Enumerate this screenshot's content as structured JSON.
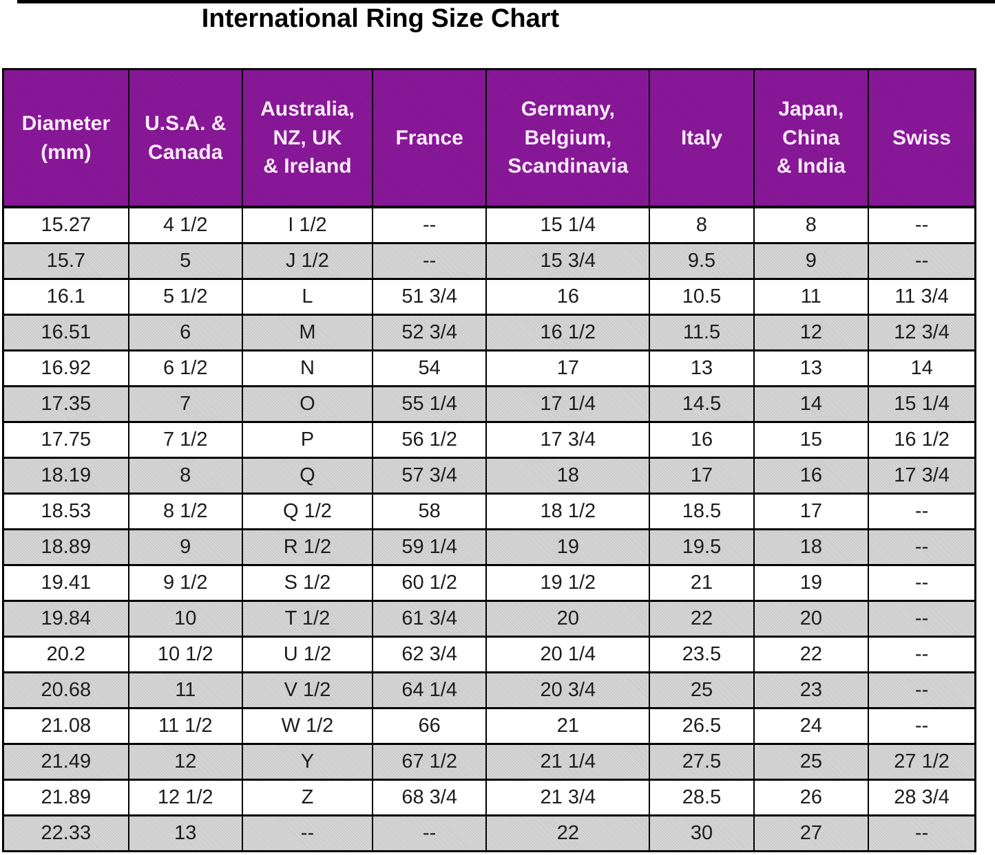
{
  "title": "International Ring Size Chart",
  "colors": {
    "header_bg": "#8B189B",
    "header_text": "#FBEBFC",
    "row_bg": "#FFFFFF",
    "row_alt_bg": "#CBCBCB",
    "border": "#000000",
    "title_color": "#000000",
    "cell_text": "#1C1C1C"
  },
  "chart_data": {
    "type": "table",
    "title": "International Ring Size Chart",
    "columns": [
      "Diameter\n(mm)",
      "U.S.A. &\nCanada",
      "Australia,\nNZ, UK\n& Ireland",
      "France",
      "Germany,\nBelgium,\nScandinavia",
      "Italy",
      "Japan,\nChina\n& India",
      "Swiss"
    ],
    "rows": [
      [
        "15.27",
        "4 1/2",
        "I 1/2",
        "--",
        "15 1/4",
        "8",
        "8",
        "--"
      ],
      [
        "15.7",
        "5",
        "J 1/2",
        "--",
        "15 3/4",
        "9.5",
        "9",
        "--"
      ],
      [
        "16.1",
        "5 1/2",
        "L",
        "51 3/4",
        "16",
        "10.5",
        "11",
        "11 3/4"
      ],
      [
        "16.51",
        "6",
        "M",
        "52 3/4",
        "16 1/2",
        "11.5",
        "12",
        "12 3/4"
      ],
      [
        "16.92",
        "6 1/2",
        "N",
        "54",
        "17",
        "13",
        "13",
        "14"
      ],
      [
        "17.35",
        "7",
        "O",
        "55 1/4",
        "17 1/4",
        "14.5",
        "14",
        "15 1/4"
      ],
      [
        "17.75",
        "7 1/2",
        "P",
        "56 1/2",
        "17 3/4",
        "16",
        "15",
        "16 1/2"
      ],
      [
        "18.19",
        "8",
        "Q",
        "57 3/4",
        "18",
        "17",
        "16",
        "17 3/4"
      ],
      [
        "18.53",
        "8 1/2",
        "Q 1/2",
        "58",
        "18 1/2",
        "18.5",
        "17",
        "--"
      ],
      [
        "18.89",
        "9",
        "R 1/2",
        "59 1/4",
        "19",
        "19.5",
        "18",
        "--"
      ],
      [
        "19.41",
        "9 1/2",
        "S 1/2",
        "60 1/2",
        "19 1/2",
        "21",
        "19",
        "--"
      ],
      [
        "19.84",
        "10",
        "T 1/2",
        "61 3/4",
        "20",
        "22",
        "20",
        "--"
      ],
      [
        "20.2",
        "10 1/2",
        "U 1/2",
        "62 3/4",
        "20 1/4",
        "23.5",
        "22",
        "--"
      ],
      [
        "20.68",
        "11",
        "V 1/2",
        "64 1/4",
        "20 3/4",
        "25",
        "23",
        "--"
      ],
      [
        "21.08",
        "11 1/2",
        "W 1/2",
        "66",
        "21",
        "26.5",
        "24",
        "--"
      ],
      [
        "21.49",
        "12",
        "Y",
        "67 1/2",
        "21 1/4",
        "27.5",
        "25",
        "27 1/2"
      ],
      [
        "21.89",
        "12 1/2",
        "Z",
        "68 3/4",
        "21 3/4",
        "28.5",
        "26",
        "28 3/4"
      ],
      [
        "22.33",
        "13",
        "--",
        "--",
        "22",
        "30",
        "27",
        "--"
      ]
    ]
  }
}
